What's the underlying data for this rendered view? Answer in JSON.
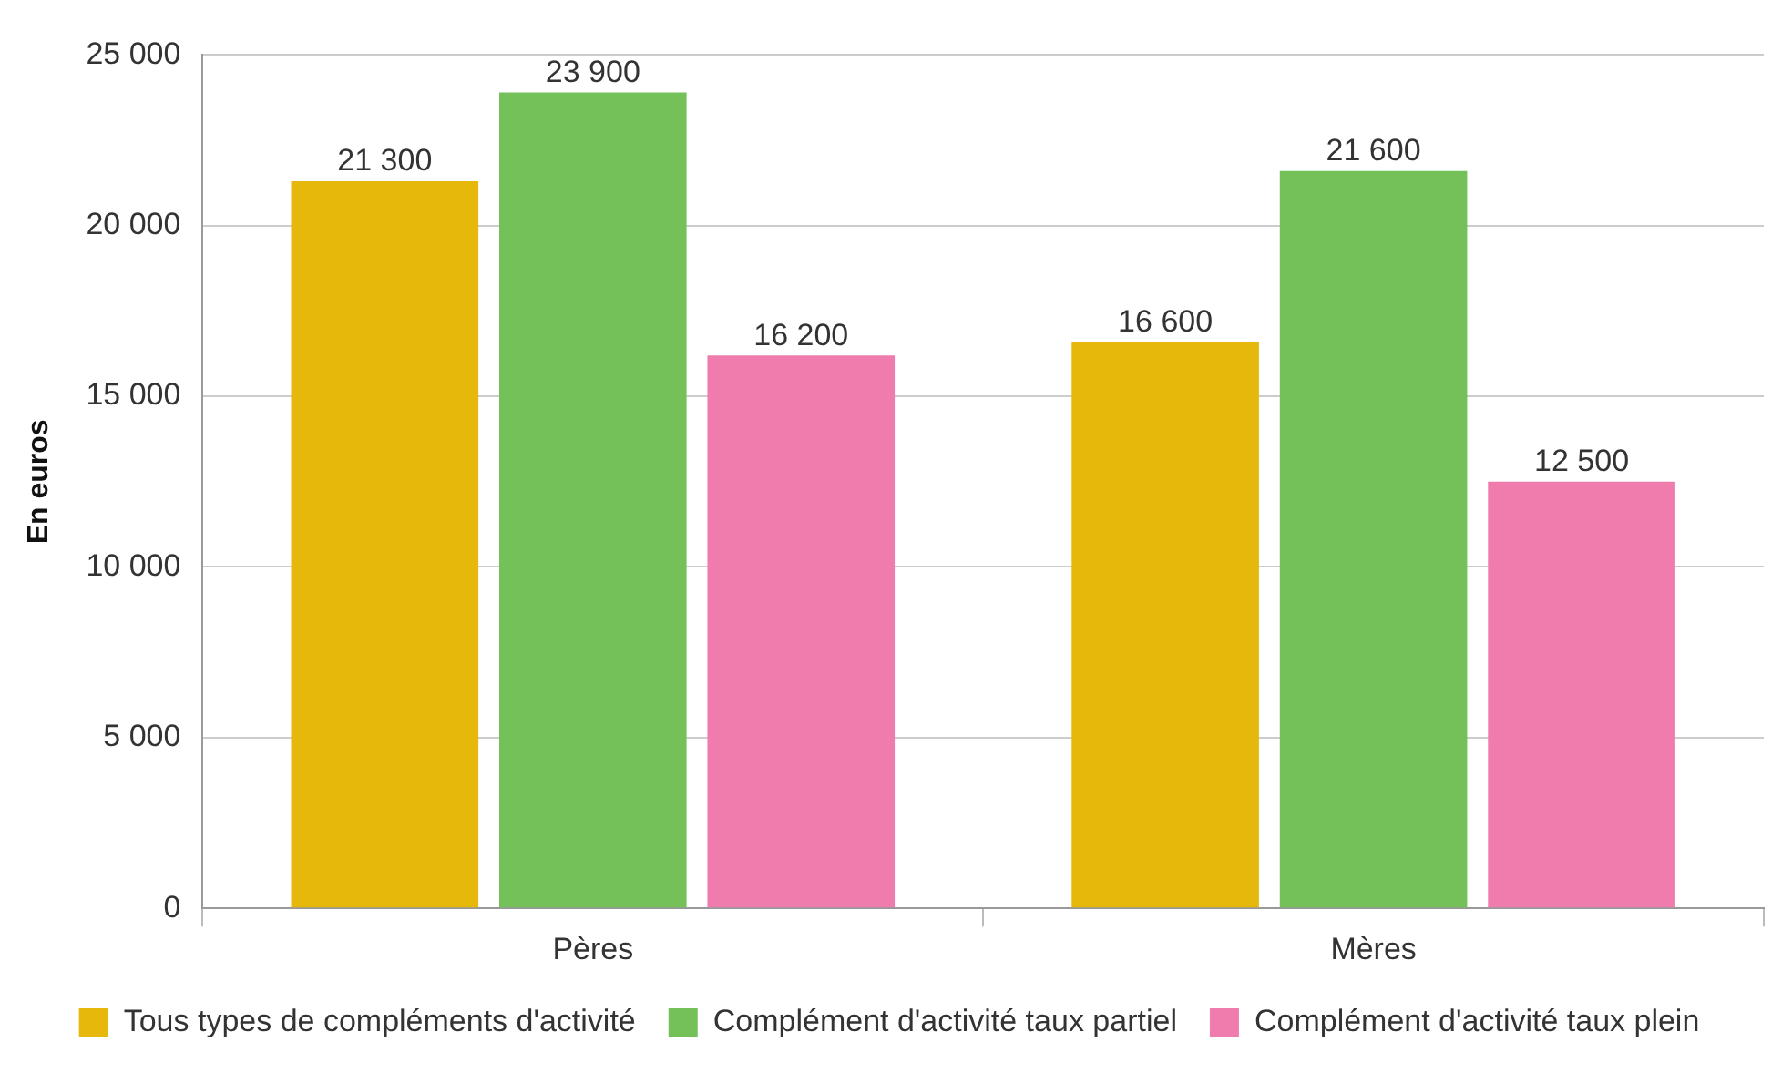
{
  "chart_data": {
    "type": "bar",
    "ylabel": "En euros",
    "categories": [
      "Pères",
      "Mères"
    ],
    "series": [
      {
        "name": "Tous types de compléments d'activité",
        "color": "#e6b80b",
        "values": [
          21300,
          16600
        ],
        "value_labels": [
          "21 300",
          "16 600"
        ]
      },
      {
        "name": "Complément d'activité taux partiel",
        "color": "#74c15a",
        "values": [
          23900,
          21600
        ],
        "value_labels": [
          "23 900",
          "21 600"
        ]
      },
      {
        "name": "Complément d'activité taux plein",
        "color": "#f07cae",
        "values": [
          16200,
          12500
        ],
        "value_labels": [
          "16 200",
          "12 500"
        ]
      }
    ],
    "ylim": [
      0,
      25000
    ],
    "yticks": [
      {
        "value": 0,
        "label": "0"
      },
      {
        "value": 5000,
        "label": "5 000"
      },
      {
        "value": 10000,
        "label": "10 000"
      },
      {
        "value": 15000,
        "label": "15 000"
      },
      {
        "value": 20000,
        "label": "20 000"
      },
      {
        "value": 25000,
        "label": "25 000"
      }
    ],
    "grid": "y",
    "legend": "bottom"
  }
}
